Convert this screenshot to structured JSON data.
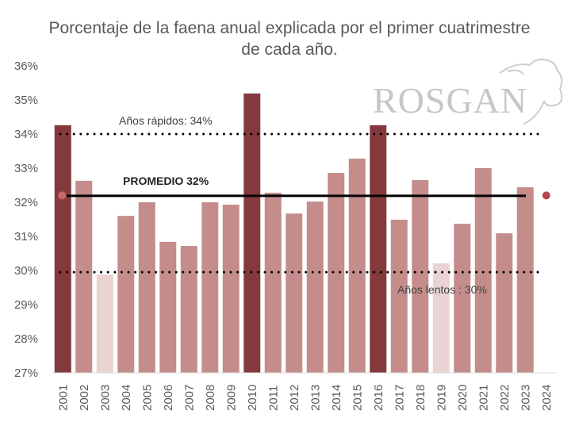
{
  "chart_data": {
    "type": "bar",
    "title": "Porcentaje de la faena anual explicada por el primer cuatrimestre de cada año.",
    "xlabel": "",
    "ylabel": "",
    "ylim": [
      27,
      36
    ],
    "yticks": [
      "27%",
      "28%",
      "29%",
      "30%",
      "31%",
      "32%",
      "33%",
      "34%",
      "35%",
      "36%"
    ],
    "grid": false,
    "categories": [
      "2001",
      "2002",
      "2003",
      "2004",
      "2005",
      "2006",
      "2007",
      "2008",
      "2009",
      "2010",
      "2011",
      "2012",
      "2013",
      "2014",
      "2015",
      "2016",
      "2017",
      "2018",
      "2019",
      "2020",
      "2021",
      "2022",
      "2023",
      "2024"
    ],
    "values": [
      34.26,
      32.63,
      29.88,
      31.6,
      32.0,
      30.84,
      30.72,
      32.0,
      31.93,
      35.19,
      32.28,
      31.67,
      32.02,
      32.86,
      33.28,
      34.26,
      31.49,
      32.65,
      30.21,
      31.37,
      33.0,
      31.09,
      32.44,
      null
    ],
    "bar_class": [
      "fast",
      "mid",
      "slow",
      "mid",
      "mid",
      "mid",
      "mid",
      "mid",
      "mid",
      "fast",
      "mid",
      "mid",
      "mid",
      "mid",
      "mid",
      "fast",
      "mid",
      "mid",
      "slow",
      "mid",
      "mid",
      "mid",
      "mid",
      "none"
    ],
    "markers": [
      {
        "category": "2001",
        "value": 32.2,
        "color": "#c9676a"
      },
      {
        "category": "2024",
        "value": 32.2,
        "color": "#b5474b"
      }
    ],
    "reference_lines": [
      {
        "label": "Años rápidos: 34%",
        "value": 34,
        "style": "dotted"
      },
      {
        "label": "PROMEDIO 32%",
        "value": 32.19,
        "style": "solid"
      },
      {
        "label": "Años lentos : 30%",
        "value": 29.95,
        "style": "dotted"
      }
    ],
    "colors": {
      "fast": "#843a3d",
      "mid": "#c48d8c",
      "slow": "#ead3d2",
      "axis": "#d9d9d9"
    }
  },
  "logo": {
    "text": "ROSGAN"
  }
}
